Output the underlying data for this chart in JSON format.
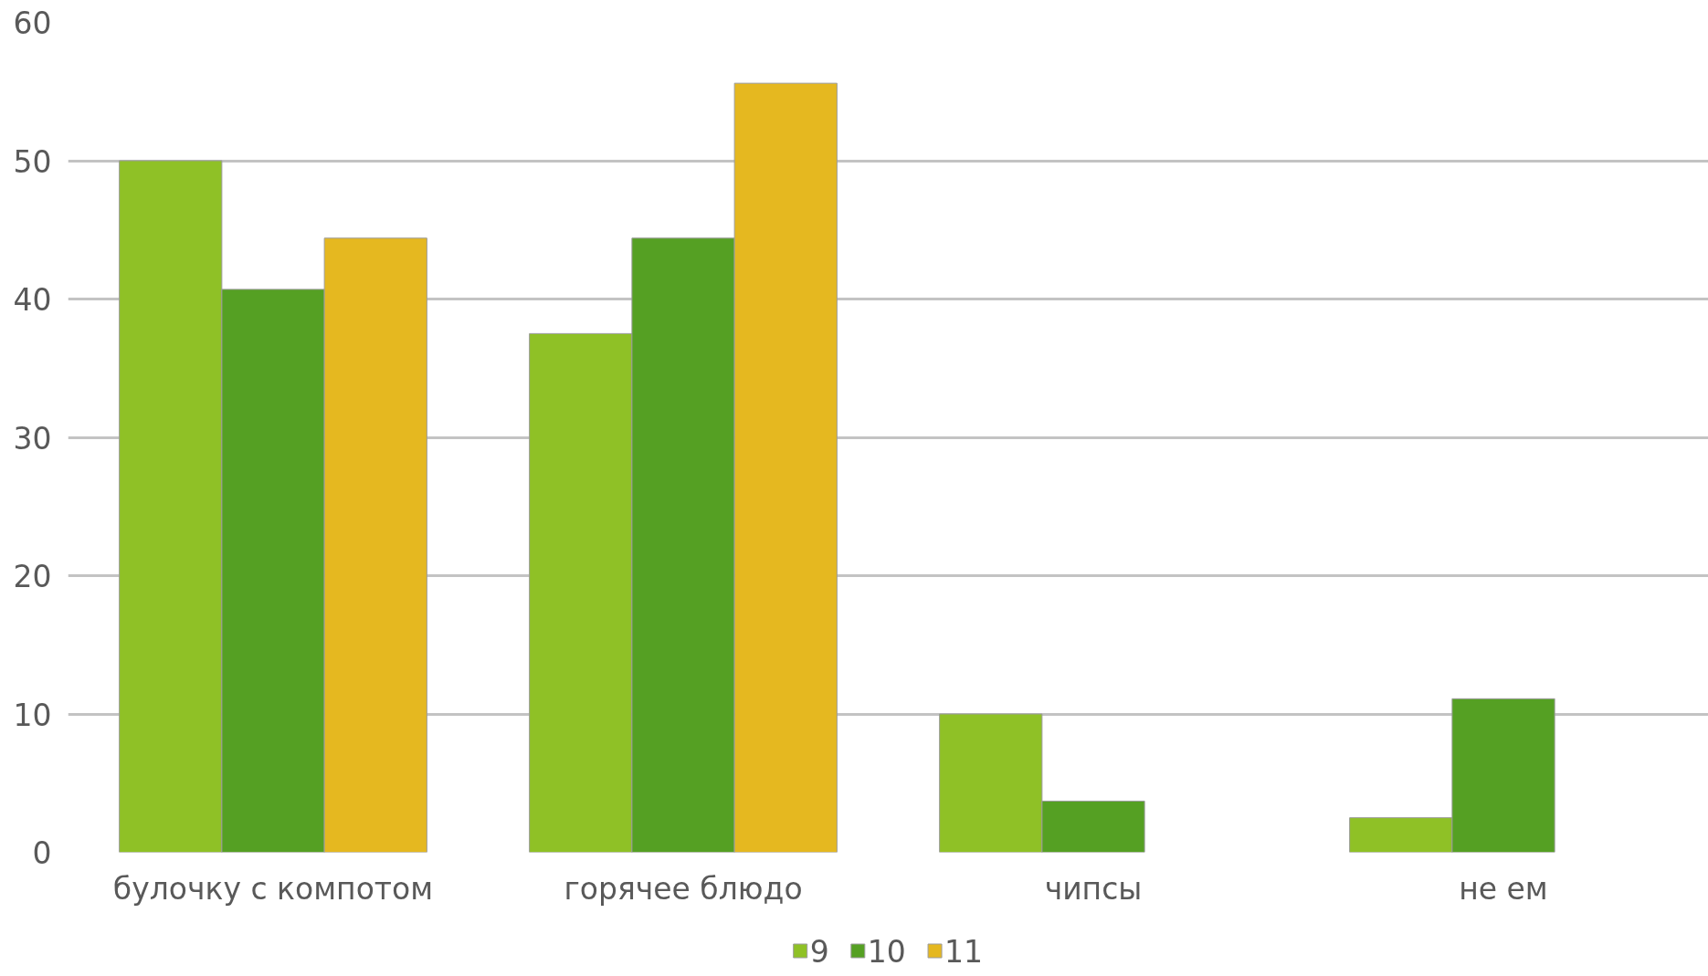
{
  "chart_data": {
    "type": "bar",
    "categories": [
      "булочку с компотом",
      "горячее блюдо",
      "чипсы",
      "не ем"
    ],
    "series": [
      {
        "name": "9",
        "color": "#8fc126",
        "values": [
          50,
          37.5,
          10,
          2.5
        ]
      },
      {
        "name": "10",
        "color": "#55a023",
        "values": [
          40.7,
          44.4,
          3.7,
          11.1
        ]
      },
      {
        "name": "11",
        "color": "#e5b820",
        "values": [
          44.4,
          55.6,
          null,
          null
        ]
      }
    ],
    "ylim": [
      0,
      60
    ],
    "yticks": [
      0,
      10,
      20,
      30,
      40,
      50,
      60
    ],
    "grid": "y",
    "legend": "bottom"
  }
}
